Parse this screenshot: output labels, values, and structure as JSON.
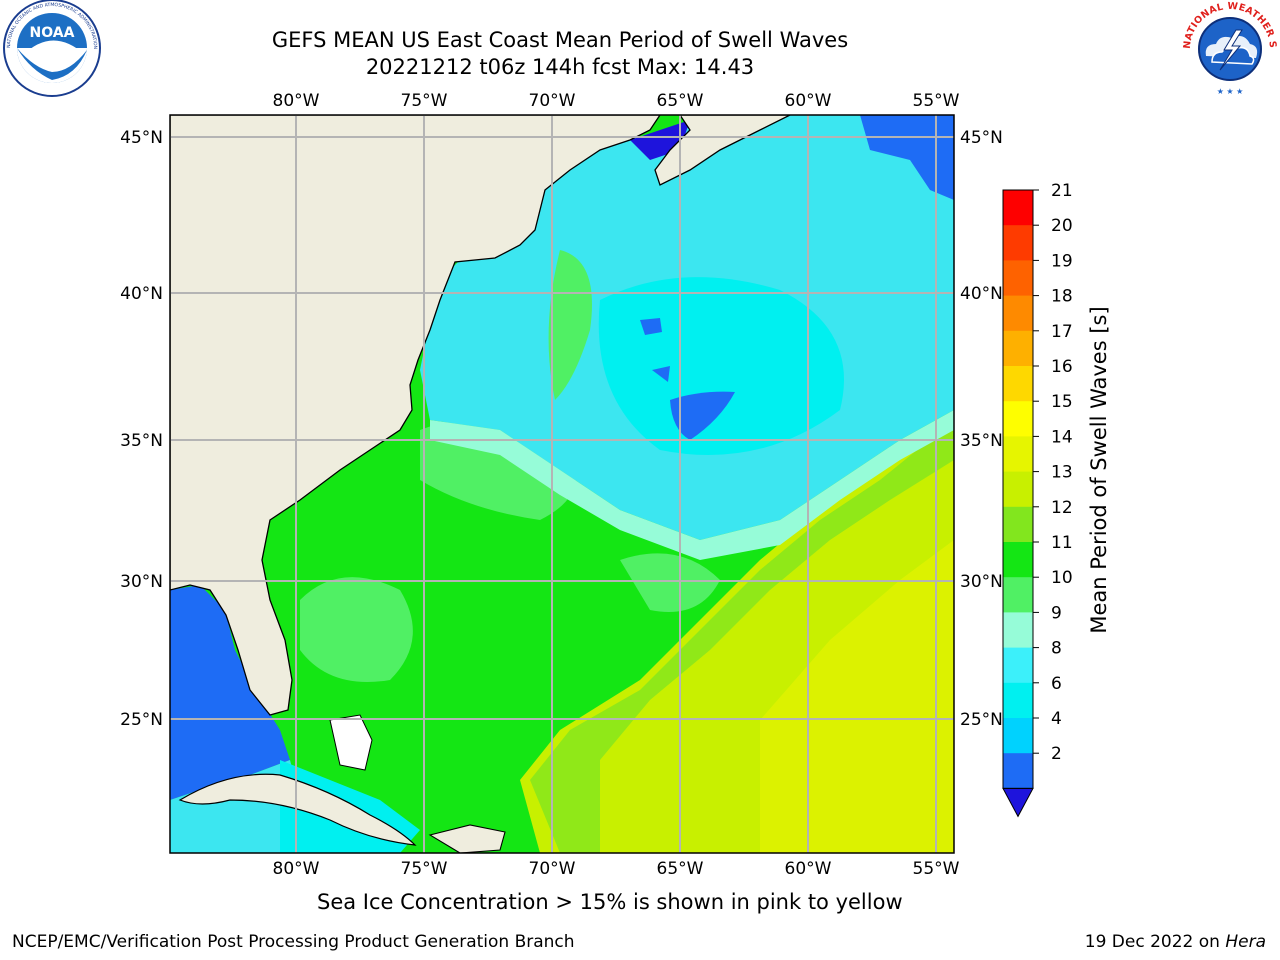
{
  "title": {
    "line1": "GEFS MEAN US East Coast Mean Period of Swell Waves",
    "line2": "20221212 t06z 144h fcst   Max: 14.43"
  },
  "caption": "Sea Ice Concentration > 15% is shown in pink to yellow",
  "footer": {
    "left": "NCEP/EMC/Verification Post Processing Product Generation Branch",
    "right_date": "19 Dec 2022 on",
    "right_host": "Hera"
  },
  "logos": {
    "left": "NOAA",
    "left_ring": "NATIONAL OCEANIC AND ATMOSPHERIC ADMINISTRATION · U.S. DEPARTMENT OF COMMERCE",
    "right_ring": "NATIONAL WEATHER SERVICE"
  },
  "map": {
    "lon_labels": [
      "80°W",
      "75°W",
      "70°W",
      "65°W",
      "60°W",
      "55°W"
    ],
    "lat_labels": [
      "45°N",
      "40°N",
      "35°N",
      "30°N",
      "25°N"
    ],
    "land_color": "#efedde",
    "ocean_regions": [
      {
        "name": "gulf-of-mexico",
        "color": "#1e6cf5"
      },
      {
        "name": "north-atlantic-cyan",
        "color": "#3ce6f0"
      },
      {
        "name": "subtropical-green",
        "color": "#14e614"
      },
      {
        "name": "southeast-yellow",
        "color": "#c8f000"
      }
    ]
  },
  "colorbar": {
    "label": "Mean Period of Swell Waves [s]",
    "ticks": [
      "21",
      "20",
      "19",
      "18",
      "17",
      "16",
      "15",
      "14",
      "13",
      "12",
      "11",
      "10",
      "9",
      "8",
      "6",
      "4",
      "2"
    ],
    "colors": [
      "#fe0000",
      "#fe3b00",
      "#fe6200",
      "#fe8a00",
      "#feb000",
      "#fed800",
      "#fefe00",
      "#e6f500",
      "#c8f000",
      "#82e61e",
      "#14e614",
      "#50f064",
      "#96fcd8",
      "#3cf0fa",
      "#00f0f0",
      "#00d2fe",
      "#1e6cf5"
    ],
    "extend_color": "#1e14dc"
  }
}
